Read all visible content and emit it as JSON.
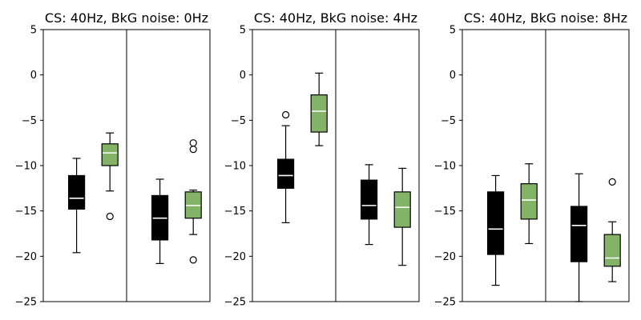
{
  "chart_data": [
    {
      "type": "box",
      "title": "CS: 40Hz, BkG noise: 0Hz",
      "ylim": [
        -25,
        5
      ],
      "yticks": [
        5,
        0,
        -5,
        -10,
        -15,
        -20,
        -25
      ],
      "grid": false,
      "boxes": [
        {
          "group": 1,
          "color": "#000000",
          "median_color": "#ffffff",
          "whisker_low": -19.6,
          "q1": -14.8,
          "median": -13.6,
          "q3": -11.1,
          "whisker_high": -9.2,
          "outliers": []
        },
        {
          "group": 1,
          "color": "#82b366",
          "median_color": "#ffffff",
          "whisker_low": -12.8,
          "q1": -10.0,
          "median": -8.6,
          "q3": -7.6,
          "whisker_high": -6.4,
          "outliers": [
            -15.6
          ]
        },
        {
          "group": 2,
          "color": "#000000",
          "median_color": "#ffffff",
          "whisker_low": -20.8,
          "q1": -18.2,
          "median": -15.8,
          "q3": -13.3,
          "whisker_high": -11.5,
          "outliers": []
        },
        {
          "group": 2,
          "color": "#82b366",
          "median_color": "#ffffff",
          "whisker_low": -17.6,
          "q1": -15.8,
          "median": -14.4,
          "q3": -12.9,
          "whisker_high": -12.7,
          "outliers": [
            -7.5,
            -8.2,
            -20.4
          ]
        }
      ]
    },
    {
      "type": "box",
      "title": "CS: 40Hz, BkG noise: 4Hz",
      "ylim": [
        -25,
        5
      ],
      "yticks": [
        5,
        0,
        -5,
        -10,
        -15,
        -20,
        -25
      ],
      "grid": false,
      "boxes": [
        {
          "group": 1,
          "color": "#000000",
          "median_color": "#ffffff",
          "whisker_low": -16.3,
          "q1": -12.5,
          "median": -11.1,
          "q3": -9.3,
          "whisker_high": -5.6,
          "outliers": [
            -4.4
          ]
        },
        {
          "group": 1,
          "color": "#82b366",
          "median_color": "#ffffff",
          "whisker_low": -7.8,
          "q1": -6.3,
          "median": -4.0,
          "q3": -2.2,
          "whisker_high": 0.2,
          "outliers": []
        },
        {
          "group": 2,
          "color": "#000000",
          "median_color": "#ffffff",
          "whisker_low": -18.7,
          "q1": -15.9,
          "median": -14.4,
          "q3": -11.6,
          "whisker_high": -9.9,
          "outliers": []
        },
        {
          "group": 2,
          "color": "#82b366",
          "median_color": "#ffffff",
          "whisker_low": -21.0,
          "q1": -16.8,
          "median": -14.6,
          "q3": -12.9,
          "whisker_high": -10.3,
          "outliers": []
        }
      ]
    },
    {
      "type": "box",
      "title": "CS: 40Hz, BkG noise: 8Hz",
      "ylim": [
        -25,
        5
      ],
      "yticks": [
        5,
        0,
        -5,
        -10,
        -15,
        -20,
        -25
      ],
      "grid": false,
      "boxes": [
        {
          "group": 1,
          "color": "#000000",
          "median_color": "#ffffff",
          "whisker_low": -23.2,
          "q1": -19.8,
          "median": -17.0,
          "q3": -12.9,
          "whisker_high": -11.1,
          "outliers": []
        },
        {
          "group": 1,
          "color": "#82b366",
          "median_color": "#ffffff",
          "whisker_low": -18.6,
          "q1": -15.9,
          "median": -13.8,
          "q3": -12.0,
          "whisker_high": -9.8,
          "outliers": []
        },
        {
          "group": 2,
          "color": "#000000",
          "median_color": "#ffffff",
          "whisker_low": -25.0,
          "q1": -20.6,
          "median": -16.6,
          "q3": -14.5,
          "whisker_high": -10.9,
          "outliers": []
        },
        {
          "group": 2,
          "color": "#82b366",
          "median_color": "#ffffff",
          "whisker_low": -22.8,
          "q1": -21.1,
          "median": -20.2,
          "q3": -17.6,
          "whisker_high": -16.2,
          "outliers": [
            -11.8
          ]
        }
      ]
    }
  ]
}
